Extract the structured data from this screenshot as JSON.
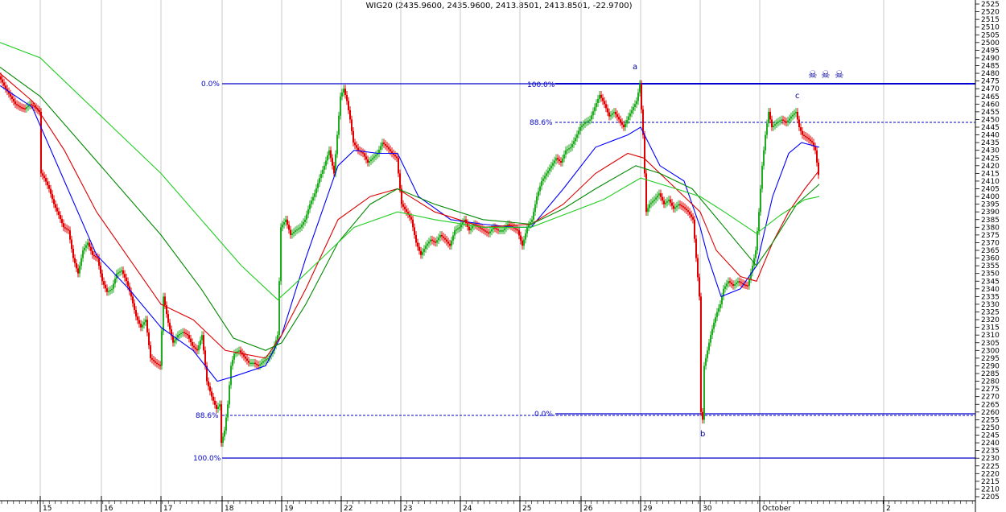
{
  "title": "WIG20 (2435.9600, 2435.9600, 2413.8501, 2413.8501, -22.9700)",
  "chart_data": {
    "type": "candlestick",
    "title": "WIG20 (2435.9600, 2435.9600, 2413.8501, 2413.8501, -22.9700)",
    "ylim": [
      2205,
      2525
    ],
    "y_ticks": [
      2205,
      2210,
      2215,
      2220,
      2225,
      2230,
      2235,
      2240,
      2245,
      2250,
      2255,
      2260,
      2265,
      2270,
      2275,
      2280,
      2285,
      2290,
      2295,
      2300,
      2305,
      2310,
      2315,
      2320,
      2325,
      2330,
      2335,
      2340,
      2345,
      2350,
      2355,
      2360,
      2365,
      2370,
      2375,
      2380,
      2385,
      2390,
      2395,
      2400,
      2405,
      2410,
      2415,
      2420,
      2425,
      2430,
      2435,
      2440,
      2445,
      2450,
      2455,
      2460,
      2465,
      2470,
      2475,
      2480,
      2485,
      2490,
      2495,
      2500,
      2505,
      2510,
      2515,
      2520,
      2525
    ],
    "x_labels": [
      "15",
      "16",
      "17",
      "18",
      "19",
      "22",
      "23",
      "24",
      "25",
      "26",
      "29",
      "30",
      "October",
      "2"
    ],
    "price_path": [
      [
        0,
        2478
      ],
      [
        8,
        2470
      ],
      [
        14,
        2465
      ],
      [
        20,
        2460
      ],
      [
        26,
        2458
      ],
      [
        32,
        2457
      ],
      [
        38,
        2460
      ],
      [
        44,
        2458
      ],
      [
        50,
        2455
      ],
      [
        52,
        2415
      ],
      [
        56,
        2412
      ],
      [
        62,
        2405
      ],
      [
        68,
        2395
      ],
      [
        74,
        2388
      ],
      [
        80,
        2380
      ],
      [
        86,
        2378
      ],
      [
        92,
        2360
      ],
      [
        98,
        2350
      ],
      [
        104,
        2365
      ],
      [
        110,
        2370
      ],
      [
        116,
        2362
      ],
      [
        122,
        2360
      ],
      [
        128,
        2345
      ],
      [
        134,
        2338
      ],
      [
        140,
        2340
      ],
      [
        146,
        2350
      ],
      [
        152,
        2352
      ],
      [
        158,
        2345
      ],
      [
        164,
        2335
      ],
      [
        170,
        2322
      ],
      [
        176,
        2315
      ],
      [
        182,
        2320
      ],
      [
        188,
        2295
      ],
      [
        194,
        2292
      ],
      [
        200,
        2290
      ],
      [
        204,
        2335
      ],
      [
        210,
        2318
      ],
      [
        216,
        2305
      ],
      [
        222,
        2310
      ],
      [
        228,
        2312
      ],
      [
        234,
        2310
      ],
      [
        240,
        2303
      ],
      [
        246,
        2300
      ],
      [
        252,
        2310
      ],
      [
        258,
        2280
      ],
      [
        264,
        2270
      ],
      [
        270,
        2262
      ],
      [
        274,
        2265
      ],
      [
        276,
        2240
      ],
      [
        280,
        2248
      ],
      [
        284,
        2265
      ],
      [
        288,
        2290
      ],
      [
        292,
        2298
      ],
      [
        298,
        2300
      ],
      [
        304,
        2296
      ],
      [
        310,
        2292
      ],
      [
        316,
        2292
      ],
      [
        322,
        2290
      ],
      [
        328,
        2293
      ],
      [
        334,
        2295
      ],
      [
        340,
        2300
      ],
      [
        346,
        2310
      ],
      [
        350,
        2380
      ],
      [
        356,
        2385
      ],
      [
        362,
        2375
      ],
      [
        368,
        2378
      ],
      [
        374,
        2380
      ],
      [
        380,
        2385
      ],
      [
        386,
        2395
      ],
      [
        392,
        2402
      ],
      [
        398,
        2412
      ],
      [
        404,
        2420
      ],
      [
        410,
        2430
      ],
      [
        416,
        2415
      ],
      [
        420,
        2440
      ],
      [
        424,
        2465
      ],
      [
        428,
        2470
      ],
      [
        432,
        2462
      ],
      [
        436,
        2450
      ],
      [
        440,
        2435
      ],
      [
        446,
        2430
      ],
      [
        452,
        2428
      ],
      [
        458,
        2422
      ],
      [
        464,
        2425
      ],
      [
        470,
        2428
      ],
      [
        476,
        2435
      ],
      [
        482,
        2432
      ],
      [
        488,
        2428
      ],
      [
        494,
        2425
      ],
      [
        500,
        2395
      ],
      [
        506,
        2390
      ],
      [
        512,
        2385
      ],
      [
        518,
        2370
      ],
      [
        524,
        2362
      ],
      [
        530,
        2368
      ],
      [
        536,
        2372
      ],
      [
        542,
        2370
      ],
      [
        548,
        2375
      ],
      [
        554,
        2372
      ],
      [
        560,
        2368
      ],
      [
        566,
        2378
      ],
      [
        572,
        2380
      ],
      [
        578,
        2385
      ],
      [
        584,
        2378
      ],
      [
        590,
        2382
      ],
      [
        596,
        2380
      ],
      [
        602,
        2378
      ],
      [
        608,
        2376
      ],
      [
        614,
        2380
      ],
      [
        620,
        2378
      ],
      [
        626,
        2378
      ],
      [
        632,
        2382
      ],
      [
        638,
        2380
      ],
      [
        644,
        2378
      ],
      [
        650,
        2368
      ],
      [
        656,
        2380
      ],
      [
        662,
        2385
      ],
      [
        668,
        2400
      ],
      [
        674,
        2410
      ],
      [
        680,
        2415
      ],
      [
        686,
        2420
      ],
      [
        692,
        2425
      ],
      [
        698,
        2422
      ],
      [
        704,
        2430
      ],
      [
        710,
        2432
      ],
      [
        716,
        2438
      ],
      [
        722,
        2445
      ],
      [
        728,
        2448
      ],
      [
        734,
        2450
      ],
      [
        740,
        2458
      ],
      [
        746,
        2466
      ],
      [
        752,
        2460
      ],
      [
        758,
        2452
      ],
      [
        764,
        2455
      ],
      [
        770,
        2450
      ],
      [
        776,
        2445
      ],
      [
        782,
        2452
      ],
      [
        788,
        2458
      ],
      [
        792,
        2462
      ],
      [
        796,
        2473
      ],
      [
        800,
        2440
      ],
      [
        804,
        2390
      ],
      [
        808,
        2395
      ],
      [
        814,
        2398
      ],
      [
        820,
        2402
      ],
      [
        826,
        2395
      ],
      [
        832,
        2398
      ],
      [
        838,
        2392
      ],
      [
        844,
        2395
      ],
      [
        850,
        2393
      ],
      [
        856,
        2390
      ],
      [
        862,
        2385
      ],
      [
        866,
        2360
      ],
      [
        870,
        2335
      ],
      [
        872,
        2260
      ],
      [
        874,
        2255
      ],
      [
        876,
        2290
      ],
      [
        880,
        2300
      ],
      [
        884,
        2310
      ],
      [
        888,
        2318
      ],
      [
        892,
        2325
      ],
      [
        896,
        2330
      ],
      [
        900,
        2340
      ],
      [
        906,
        2345
      ],
      [
        912,
        2342
      ],
      [
        918,
        2345
      ],
      [
        924,
        2343
      ],
      [
        930,
        2342
      ],
      [
        936,
        2355
      ],
      [
        940,
        2365
      ],
      [
        944,
        2390
      ],
      [
        948,
        2420
      ],
      [
        952,
        2440
      ],
      [
        956,
        2455
      ],
      [
        960,
        2445
      ],
      [
        966,
        2448
      ],
      [
        972,
        2450
      ],
      [
        978,
        2448
      ],
      [
        984,
        2452
      ],
      [
        990,
        2455
      ],
      [
        994,
        2445
      ],
      [
        998,
        2440
      ],
      [
        1004,
        2438
      ],
      [
        1010,
        2435
      ],
      [
        1014,
        2430
      ],
      [
        1018,
        2414
      ]
    ],
    "series": [
      {
        "color": "#0000ff",
        "points": [
          [
            0,
            2472
          ],
          [
            40,
            2458
          ],
          [
            80,
            2410
          ],
          [
            120,
            2362
          ],
          [
            160,
            2340
          ],
          [
            200,
            2315
          ],
          [
            240,
            2300
          ],
          [
            270,
            2280
          ],
          [
            290,
            2283
          ],
          [
            330,
            2290
          ],
          [
            350,
            2310
          ],
          [
            380,
            2360
          ],
          [
            420,
            2420
          ],
          [
            440,
            2430
          ],
          [
            470,
            2428
          ],
          [
            494,
            2428
          ],
          [
            520,
            2400
          ],
          [
            560,
            2385
          ],
          [
            600,
            2382
          ],
          [
            640,
            2380
          ],
          [
            660,
            2380
          ],
          [
            700,
            2405
          ],
          [
            740,
            2432
          ],
          [
            780,
            2440
          ],
          [
            796,
            2445
          ],
          [
            820,
            2420
          ],
          [
            850,
            2410
          ],
          [
            870,
            2380
          ],
          [
            880,
            2360
          ],
          [
            896,
            2335
          ],
          [
            920,
            2340
          ],
          [
            940,
            2355
          ],
          [
            960,
            2400
          ],
          [
            980,
            2428
          ],
          [
            996,
            2435
          ],
          [
            1018,
            2432
          ]
        ]
      },
      {
        "color": "#dd0000",
        "points": [
          [
            0,
            2480
          ],
          [
            40,
            2462
          ],
          [
            80,
            2430
          ],
          [
            120,
            2390
          ],
          [
            160,
            2360
          ],
          [
            200,
            2330
          ],
          [
            240,
            2320
          ],
          [
            280,
            2300
          ],
          [
            330,
            2295
          ],
          [
            350,
            2310
          ],
          [
            380,
            2340
          ],
          [
            420,
            2385
          ],
          [
            460,
            2400
          ],
          [
            494,
            2405
          ],
          [
            540,
            2390
          ],
          [
            600,
            2380
          ],
          [
            660,
            2382
          ],
          [
            700,
            2395
          ],
          [
            740,
            2415
          ],
          [
            780,
            2428
          ],
          [
            800,
            2425
          ],
          [
            840,
            2405
          ],
          [
            870,
            2390
          ],
          [
            890,
            2365
          ],
          [
            920,
            2348
          ],
          [
            940,
            2345
          ],
          [
            960,
            2370
          ],
          [
            980,
            2390
          ],
          [
            1000,
            2405
          ],
          [
            1018,
            2417
          ]
        ]
      },
      {
        "color": "#008800",
        "points": [
          [
            0,
            2484
          ],
          [
            50,
            2465
          ],
          [
            100,
            2435
          ],
          [
            150,
            2405
          ],
          [
            200,
            2375
          ],
          [
            250,
            2340
          ],
          [
            290,
            2308
          ],
          [
            330,
            2300
          ],
          [
            350,
            2305
          ],
          [
            380,
            2330
          ],
          [
            420,
            2370
          ],
          [
            460,
            2395
          ],
          [
            494,
            2405
          ],
          [
            540,
            2395
          ],
          [
            600,
            2385
          ],
          [
            660,
            2382
          ],
          [
            700,
            2392
          ],
          [
            740,
            2405
          ],
          [
            790,
            2420
          ],
          [
            820,
            2415
          ],
          [
            860,
            2405
          ],
          [
            900,
            2380
          ],
          [
            940,
            2355
          ],
          [
            960,
            2370
          ],
          [
            990,
            2395
          ],
          [
            1018,
            2408
          ]
        ]
      },
      {
        "color": "#22cc22",
        "points": [
          [
            0,
            2500
          ],
          [
            50,
            2490
          ],
          [
            100,
            2465
          ],
          [
            150,
            2440
          ],
          [
            200,
            2415
          ],
          [
            250,
            2385
          ],
          [
            300,
            2355
          ],
          [
            345,
            2333
          ],
          [
            360,
            2340
          ],
          [
            400,
            2360
          ],
          [
            440,
            2380
          ],
          [
            494,
            2390
          ],
          [
            540,
            2385
          ],
          [
            600,
            2380
          ],
          [
            660,
            2380
          ],
          [
            700,
            2388
          ],
          [
            750,
            2398
          ],
          [
            796,
            2412
          ],
          [
            840,
            2405
          ],
          [
            870,
            2400
          ],
          [
            900,
            2390
          ],
          [
            940,
            2376
          ],
          [
            970,
            2388
          ],
          [
            1000,
            2398
          ],
          [
            1018,
            2400
          ]
        ]
      }
    ],
    "fib_upper": {
      "levels": [
        "0.0%",
        "88.6%",
        "100.0%"
      ],
      "values": [
        2475,
        2257,
        2230
      ]
    },
    "fib_lower": {
      "levels": [
        "100.0%",
        "88.6%",
        "0.0%"
      ],
      "values": [
        2475,
        2450,
        2258
      ]
    },
    "wave_labels": [
      "a",
      "b",
      "c"
    ],
    "markers": [
      "☠",
      "☠",
      "☠"
    ]
  }
}
